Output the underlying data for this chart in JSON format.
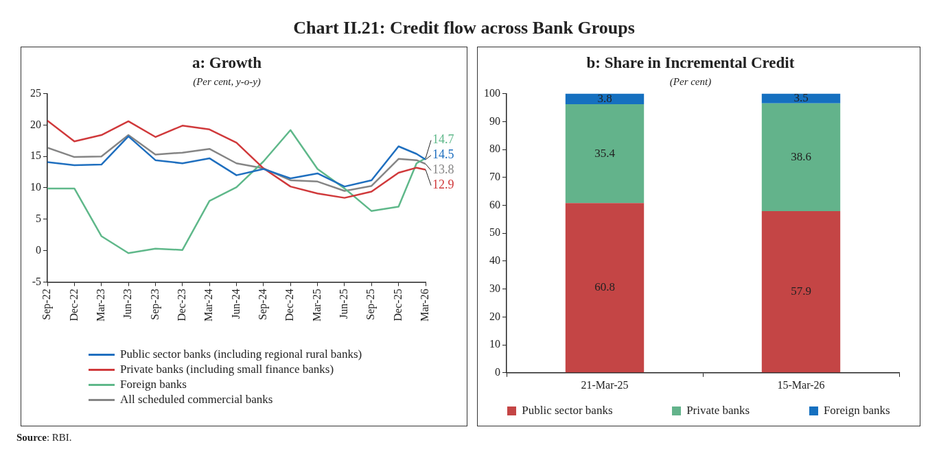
{
  "chart_data": [
    {
      "type": "line",
      "title": "a: Growth",
      "subtitle": "(Per cent, y-o-y)",
      "annotations": [
        "Chart II.21: Credit flow across Bank Groups",
        "Source: RBI."
      ],
      "x": [
        "2022-09",
        "2022-12",
        "2023-03",
        "2023-06",
        "2023-09",
        "2023-12",
        "2024-03",
        "2024-06",
        "2024-09",
        "2024-12",
        "2025-03",
        "2025-06",
        "2025-09",
        "2025-12",
        "2026-02",
        "2026-03"
      ],
      "xlim": [
        "2022-09",
        "2026-03"
      ],
      "xticks": [
        {
          "value": "2022-09",
          "label": "Sep-22"
        },
        {
          "value": "2022-12",
          "label": "Dec-22"
        },
        {
          "value": "2023-03",
          "label": "Mar-23"
        },
        {
          "value": "2023-06",
          "label": "Jun-23"
        },
        {
          "value": "2023-09",
          "label": "Sep-23"
        },
        {
          "value": "2023-12",
          "label": "Dec-23"
        },
        {
          "value": "2024-03",
          "label": "Mar-24"
        },
        {
          "value": "2024-06",
          "label": "Jun-24"
        },
        {
          "value": "2024-09",
          "label": "Sep-24"
        },
        {
          "value": "2024-12",
          "label": "Dec-24"
        },
        {
          "value": "2025-03",
          "label": "Mar-25"
        },
        {
          "value": "2025-06",
          "label": "Jun-25"
        },
        {
          "value": "2025-09",
          "label": "Sep-25"
        },
        {
          "value": "2025-12",
          "label": "Dec-25"
        },
        {
          "value": "2026-03",
          "label": "Mar-26"
        }
      ],
      "ylim": [
        -5,
        25
      ],
      "yticks": [
        -5,
        0,
        5,
        10,
        15,
        20,
        25
      ],
      "grid": false,
      "legend": "bottom",
      "marker": "none",
      "series": [
        {
          "name": "Public sector banks (including regional rural banks)",
          "color": "#1f6fbf",
          "values": [
            14.1,
            13.6,
            13.7,
            18.2,
            14.4,
            13.9,
            14.7,
            12.0,
            13.0,
            11.5,
            12.3,
            10.2,
            11.2,
            16.6,
            15.4,
            14.5
          ],
          "value_labels": [
            null,
            null,
            null,
            null,
            null,
            null,
            null,
            null,
            null,
            null,
            null,
            null,
            null,
            null,
            null,
            "14.5"
          ]
        },
        {
          "name": "Private banks (including small finance banks)",
          "color": "#d0393b",
          "values": [
            20.7,
            17.4,
            18.4,
            20.6,
            18.1,
            19.9,
            19.3,
            17.2,
            13.1,
            10.2,
            9.1,
            8.4,
            9.4,
            12.4,
            13.2,
            12.9
          ],
          "value_labels": [
            null,
            null,
            null,
            null,
            null,
            null,
            null,
            null,
            null,
            null,
            null,
            null,
            null,
            null,
            null,
            "12.9"
          ]
        },
        {
          "name": "Foreign banks",
          "color": "#5fb88a",
          "values": [
            9.9,
            9.9,
            2.3,
            -0.4,
            0.3,
            0.1,
            7.9,
            10.1,
            14.2,
            19.2,
            13.0,
            9.9,
            6.3,
            7.0,
            13.9,
            14.7
          ],
          "value_labels": [
            null,
            null,
            null,
            null,
            null,
            null,
            null,
            null,
            null,
            null,
            null,
            null,
            null,
            null,
            null,
            "14.7"
          ]
        },
        {
          "name": "All scheduled commercial banks",
          "color": "#858585",
          "values": [
            16.4,
            14.9,
            15.0,
            18.4,
            15.3,
            15.6,
            16.2,
            13.9,
            13.1,
            11.2,
            11.0,
            9.5,
            10.3,
            14.6,
            14.4,
            13.8
          ],
          "value_labels": [
            null,
            null,
            null,
            null,
            null,
            null,
            null,
            null,
            null,
            null,
            null,
            null,
            null,
            null,
            null,
            "13.8"
          ]
        }
      ]
    },
    {
      "type": "bar",
      "title": "b: Share in Incremental Credit",
      "subtitle": "(Per cent)",
      "stacked": true,
      "categories": [
        "21-Mar-25",
        "15-Mar-26"
      ],
      "ylim": [
        0,
        100
      ],
      "yticks": [
        0,
        10,
        20,
        30,
        40,
        50,
        60,
        70,
        80,
        90,
        100
      ],
      "grid": false,
      "legend": "bottom",
      "data_labels": true,
      "series": [
        {
          "name": "Public sector banks",
          "color": "#c44545",
          "values": [
            60.8,
            57.9
          ]
        },
        {
          "name": "Private banks",
          "color": "#63b38b",
          "values": [
            35.4,
            38.6
          ]
        },
        {
          "name": "Foreign banks",
          "color": "#1570c0",
          "values": [
            3.8,
            3.5
          ]
        }
      ]
    }
  ]
}
